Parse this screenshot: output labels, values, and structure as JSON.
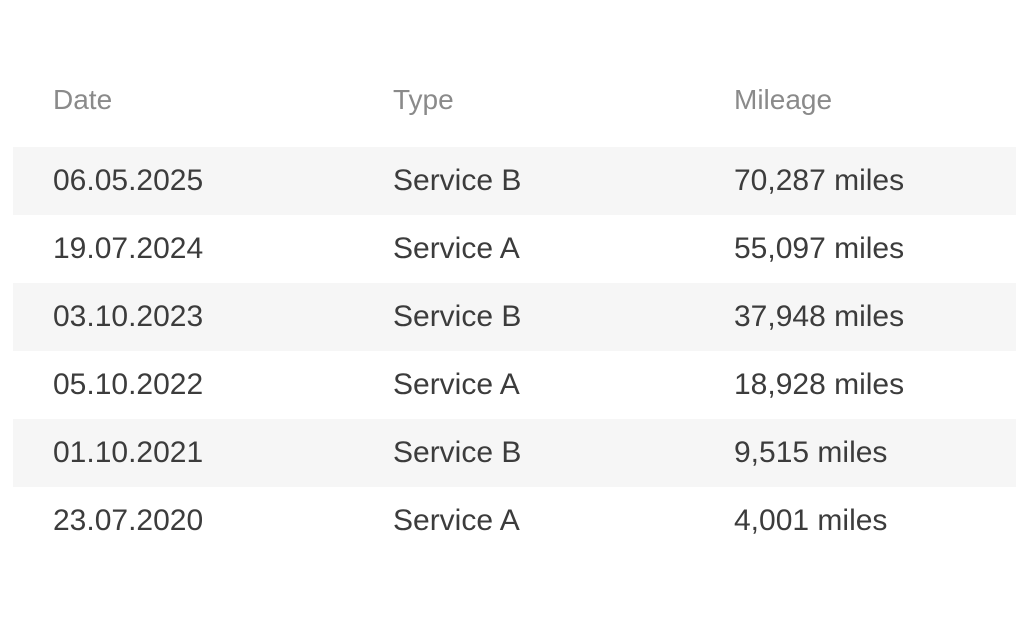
{
  "table": {
    "name": "service-history-table",
    "columns": [
      {
        "key": "date",
        "label": "Date"
      },
      {
        "key": "type",
        "label": "Type"
      },
      {
        "key": "mileage",
        "label": "Mileage"
      }
    ],
    "rows": [
      {
        "date": "06.05.2025",
        "type": "Service B",
        "mileage": "70,287 miles"
      },
      {
        "date": "19.07.2024",
        "type": "Service A",
        "mileage": "55,097 miles"
      },
      {
        "date": "03.10.2023",
        "type": "Service B",
        "mileage": "37,948 miles"
      },
      {
        "date": "05.10.2022",
        "type": "Service A",
        "mileage": "18,928 miles"
      },
      {
        "date": "01.10.2021",
        "type": "Service B",
        "mileage": "9,515 miles"
      },
      {
        "date": "23.07.2020",
        "type": "Service A",
        "mileage": "4,001 miles"
      }
    ],
    "colors": {
      "background": "#ffffff",
      "stripe": "#f6f6f6",
      "header_text": "#8a8a8a",
      "cell_text": "#3c3c3c"
    }
  }
}
